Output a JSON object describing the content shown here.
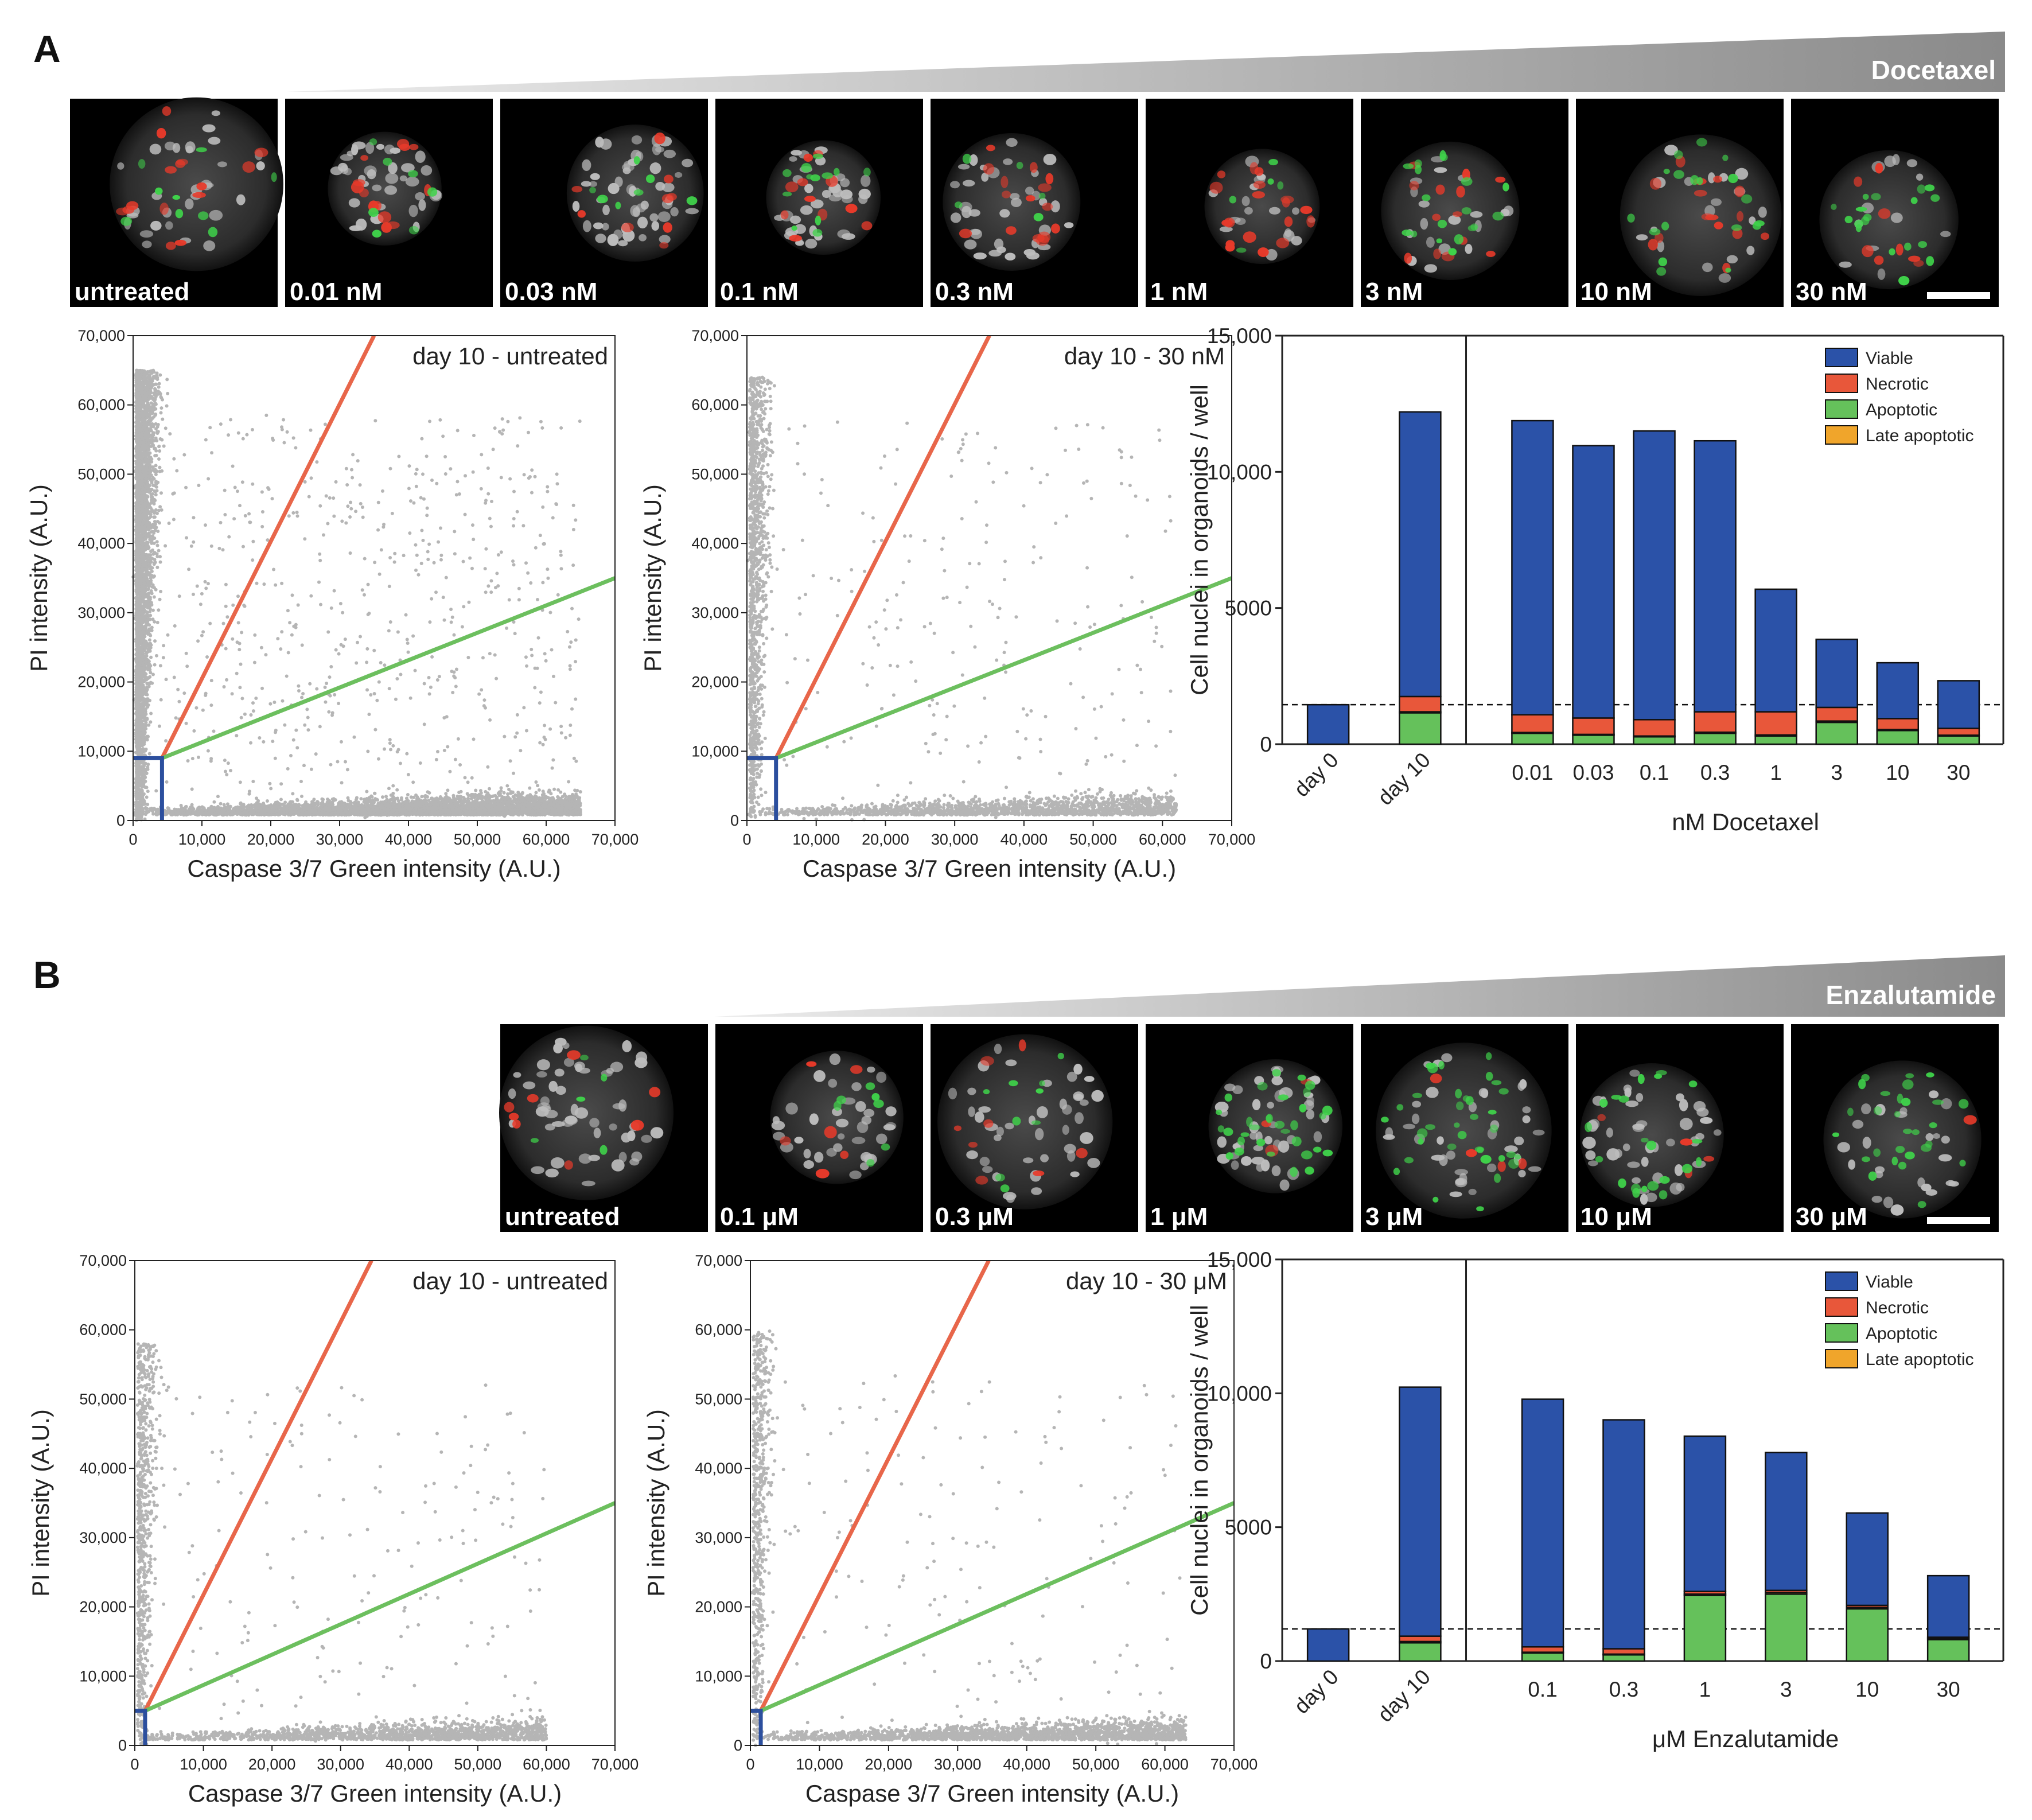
{
  "panels": [
    {
      "letter": "A",
      "drug": "Docetaxel",
      "colors": {
        "necrotic_line": "#e8664a",
        "apoptotic_line": "#6cbf5e",
        "gate": "#2c4f9e",
        "points": "#b5b5b5"
      },
      "images": [
        {
          "label": "untreated",
          "mix": {
            "red": 0.6,
            "green": 0.25,
            "white": 0.5
          }
        },
        {
          "label": "0.01 nM",
          "mix": {
            "red": 0.5,
            "green": 0.2,
            "white": 0.6
          }
        },
        {
          "label": "0.03 nM",
          "mix": {
            "red": 0.35,
            "green": 0.2,
            "white": 0.9
          }
        },
        {
          "label": "0.1 nM",
          "mix": {
            "red": 0.45,
            "green": 0.35,
            "white": 0.6
          }
        },
        {
          "label": "0.3 nM",
          "mix": {
            "red": 0.6,
            "green": 0.15,
            "white": 0.6
          }
        },
        {
          "label": "1 nM",
          "mix": {
            "red": 0.7,
            "green": 0.15,
            "white": 0.3
          }
        },
        {
          "label": "3 nM",
          "mix": {
            "red": 0.5,
            "green": 0.5,
            "white": 0.3
          }
        },
        {
          "label": "10 nM",
          "mix": {
            "red": 0.6,
            "green": 0.5,
            "white": 0.3
          }
        },
        {
          "label": "30 nM",
          "mix": {
            "red": 0.3,
            "green": 0.5,
            "white": 0.2
          }
        }
      ],
      "scatters": [
        {
          "title": "day 10 - untreated",
          "xlabel": "Caspase 3/7 Green intensity (A.U.)",
          "ylabel": "PI intensity (A.U.)",
          "xlim": [
            0,
            70000
          ],
          "ylim": [
            0,
            70000
          ],
          "xticks": [
            "0",
            "10,000",
            "20,000",
            "30,000",
            "40,000",
            "50,000",
            "60,000",
            "70,000"
          ],
          "yticks": [
            "0",
            "10,000",
            "20,000",
            "30,000",
            "40,000",
            "50,000",
            "60,000",
            "70,000"
          ],
          "gate": {
            "x": 4200,
            "y": 9000
          },
          "necrotic_line": [
            [
              4200,
              9000
            ],
            [
              35000,
              70000
            ]
          ],
          "apoptotic_line": [
            [
              4200,
              9000
            ],
            [
              70000,
              35000
            ]
          ],
          "cloud": {
            "n_upper": 3600,
            "n_lower": 4200,
            "n_sparse": 700,
            "upper_max_y": 65000,
            "lower_max_x": 65000
          }
        },
        {
          "title": "day 10 - 30 nM",
          "xlabel": "Caspase 3/7 Green intensity (A.U.)",
          "ylabel": "PI intensity (A.U.)",
          "xlim": [
            0,
            70000
          ],
          "ylim": [
            0,
            70000
          ],
          "xticks": [
            "0",
            "10,000",
            "20,000",
            "30,000",
            "40,000",
            "50,000",
            "60,000",
            "70,000"
          ],
          "yticks": [
            "0",
            "10,000",
            "20,000",
            "30,000",
            "40,000",
            "50,000",
            "60,000",
            "70,000"
          ],
          "gate": {
            "x": 4200,
            "y": 9000
          },
          "necrotic_line": [
            [
              4200,
              9000
            ],
            [
              35000,
              70000
            ]
          ],
          "apoptotic_line": [
            [
              4200,
              9000
            ],
            [
              70000,
              35000
            ]
          ],
          "cloud": {
            "n_upper": 1200,
            "n_lower": 1600,
            "n_sparse": 260,
            "upper_max_y": 64000,
            "lower_max_x": 62000
          }
        }
      ],
      "bars": {
        "type": "stacked-bar",
        "ylabel": "Cell nuclei in organoids / well",
        "xlabel": "nM Docetaxel",
        "yticks": [
          "0",
          "5000",
          "10,000",
          "15,000"
        ],
        "ylim": [
          0,
          15000
        ],
        "baseline": 1450,
        "legend": [
          "Viable",
          "Necrotic",
          "Apoptotic",
          "Late apoptotic"
        ],
        "colors": {
          "Viable": "#2b52a8",
          "Necrotic": "#e8573a",
          "Apoptotic": "#65c15b",
          "Late apoptotic": "#f0a52b"
        },
        "groups": [
          {
            "categories": [
              "day 0",
              "day 10"
            ],
            "rotated": true
          },
          {
            "categories": [
              "0.01",
              "0.03",
              "0.1",
              "0.3",
              "1",
              "3",
              "10",
              "30"
            ],
            "rotated": false
          }
        ],
        "series": [
          {
            "name": "Viable",
            "values": [
              1450,
              10450,
              10800,
              10000,
              10600,
              9950,
              4500,
              2500,
              2050,
              1750
            ]
          },
          {
            "name": "Necrotic",
            "values": [
              0,
              560,
              650,
              600,
              600,
              750,
              850,
              500,
              400,
              250
            ]
          },
          {
            "name": "Apoptotic",
            "values": [
              0,
              1150,
              400,
              330,
              270,
              400,
              300,
              800,
              500,
              300
            ]
          },
          {
            "name": "Late apoptotic",
            "values": [
              0,
              40,
              30,
              30,
              30,
              40,
              40,
              50,
              40,
              30
            ]
          }
        ]
      }
    },
    {
      "letter": "B",
      "drug": "Enzalutamide",
      "colors": {
        "necrotic_line": "#e8664a",
        "apoptotic_line": "#6cbf5e",
        "gate": "#2c4f9e",
        "points": "#b5b5b5"
      },
      "images": [
        {
          "label": "untreated",
          "mix": {
            "red": 0.3,
            "green": 0.15,
            "white": 0.9
          }
        },
        {
          "label": "0.1 μM",
          "mix": {
            "red": 0.25,
            "green": 0.2,
            "white": 0.6
          }
        },
        {
          "label": "0.3 μM",
          "mix": {
            "red": 0.3,
            "green": 0.25,
            "white": 0.7
          }
        },
        {
          "label": "1 μM",
          "mix": {
            "red": 0.1,
            "green": 0.9,
            "white": 0.7
          }
        },
        {
          "label": "3 μM",
          "mix": {
            "red": 0.15,
            "green": 1.0,
            "white": 0.6
          }
        },
        {
          "label": "10 μM",
          "mix": {
            "red": 0.15,
            "green": 0.6,
            "white": 0.7
          }
        },
        {
          "label": "30 μM",
          "mix": {
            "red": 0.05,
            "green": 0.8,
            "white": 0.4
          }
        }
      ],
      "scatters": [
        {
          "title": "day 10 - untreated",
          "xlabel": "Caspase 3/7 Green intensity (A.U.)",
          "ylabel": "PI intensity (A.U.)",
          "xlim": [
            0,
            70000
          ],
          "ylim": [
            0,
            70000
          ],
          "xticks": [
            "0",
            "10,000",
            "20,000",
            "30,000",
            "40,000",
            "50,000",
            "60,000",
            "70,000"
          ],
          "yticks": [
            "0",
            "10,000",
            "20,000",
            "30,000",
            "40,000",
            "50,000",
            "60,000",
            "70,000"
          ],
          "gate": {
            "x": 1500,
            "y": 5000
          },
          "necrotic_line": [
            [
              1500,
              5000
            ],
            [
              34500,
              70000
            ]
          ],
          "apoptotic_line": [
            [
              1500,
              5000
            ],
            [
              70000,
              35000
            ]
          ],
          "cloud": {
            "n_upper": 700,
            "n_lower": 1500,
            "n_sparse": 200,
            "upper_max_y": 58000,
            "lower_max_x": 60000
          }
        },
        {
          "title": "day 10 - 30 μM",
          "xlabel": "Caspase 3/7 Green intensity (A.U.)",
          "ylabel": "PI intensity (A.U.)",
          "xlim": [
            0,
            70000
          ],
          "ylim": [
            0,
            70000
          ],
          "xticks": [
            "0",
            "10,000",
            "20,000",
            "30,000",
            "40,000",
            "50,000",
            "60,000",
            "70,000"
          ],
          "yticks": [
            "0",
            "10,000",
            "20,000",
            "30,000",
            "40,000",
            "50,000",
            "60,000",
            "70,000"
          ],
          "gate": {
            "x": 1500,
            "y": 5000
          },
          "necrotic_line": [
            [
              1500,
              5000
            ],
            [
              34500,
              70000
            ]
          ],
          "apoptotic_line": [
            [
              1500,
              5000
            ],
            [
              70000,
              35000
            ]
          ],
          "cloud": {
            "n_upper": 600,
            "n_lower": 1900,
            "n_sparse": 180,
            "upper_max_y": 60000,
            "lower_max_x": 63000
          }
        }
      ],
      "bars": {
        "type": "stacked-bar",
        "ylabel": "Cell nuclei in organoids / well",
        "xlabel": "μM Enzalutamide",
        "yticks": [
          "0",
          "5000",
          "10,000",
          "15,000"
        ],
        "ylim": [
          0,
          15000
        ],
        "baseline": 1200,
        "legend": [
          "Viable",
          "Necrotic",
          "Apoptotic",
          "Late apoptotic"
        ],
        "colors": {
          "Viable": "#2b52a8",
          "Necrotic": "#e8573a",
          "Apoptotic": "#65c15b",
          "Late apoptotic": "#f0a52b"
        },
        "groups": [
          {
            "categories": [
              "day 0",
              "day 10"
            ],
            "rotated": true
          },
          {
            "categories": [
              "0.1",
              "0.3",
              "1",
              "3",
              "10",
              "30"
            ],
            "rotated": false
          }
        ],
        "series": [
          {
            "name": "Viable",
            "values": [
              1200,
              9300,
              9250,
              8550,
              5800,
              5150,
              3450,
              2300
            ]
          },
          {
            "name": "Necrotic",
            "values": [
              0,
              200,
              200,
              200,
              100,
              80,
              80,
              50
            ]
          },
          {
            "name": "Apoptotic",
            "values": [
              0,
              680,
              300,
              230,
              2450,
              2500,
              1950,
              800
            ]
          },
          {
            "name": "Late apoptotic",
            "values": [
              0,
              50,
              30,
              30,
              50,
              60,
              50,
              40
            ]
          }
        ]
      }
    }
  ]
}
